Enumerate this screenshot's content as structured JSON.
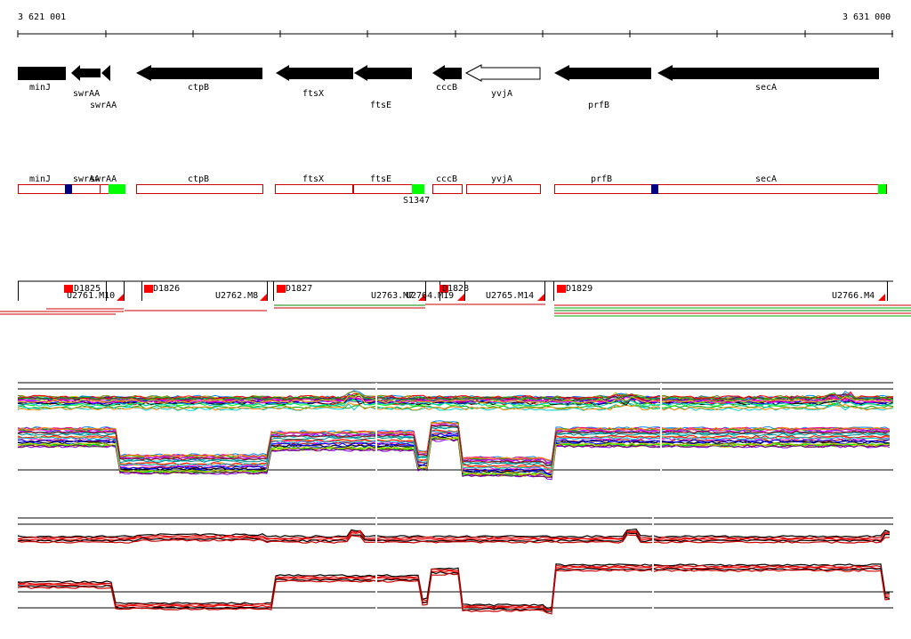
{
  "ruler": {
    "start_label": "3 621 001",
    "end_label": "3 631 000"
  },
  "genes": [
    {
      "name": "minJ",
      "label": "minJ"
    },
    {
      "name": "swrAA",
      "label": "swrAA"
    },
    {
      "name": "swrAA-2",
      "label": "swrAA"
    },
    {
      "name": "ctpB",
      "label": "ctpB"
    },
    {
      "name": "ftsX",
      "label": "ftsX"
    },
    {
      "name": "ftsE",
      "label": "ftsE"
    },
    {
      "name": "cccB",
      "label": "cccB"
    },
    {
      "name": "yvjA",
      "label": "yvjA"
    },
    {
      "name": "prfB",
      "label": "prfB"
    },
    {
      "name": "secA",
      "label": "secA"
    }
  ],
  "annotation_track": {
    "labels": [
      "minJ",
      "swrAA",
      "swrAA",
      "ctpB",
      "ftsX",
      "ftsE",
      "cccB",
      "yvjA",
      "prfB",
      "secA"
    ],
    "extra_label": "S1347"
  },
  "transcripts": {
    "labels": [
      "D1825",
      "U2761.M10",
      "D1826",
      "U2762.M8",
      "D1827",
      "U2763.M7",
      "U2764.M19",
      "D1828",
      "U2765.M14",
      "D1829",
      "U2766.M4"
    ]
  },
  "colors": {
    "gene_fill": "#000000",
    "outline": "#cc0000",
    "marker_blue": "#000080",
    "marker_green": "#00ff00",
    "marker_red": "#ff0000"
  }
}
